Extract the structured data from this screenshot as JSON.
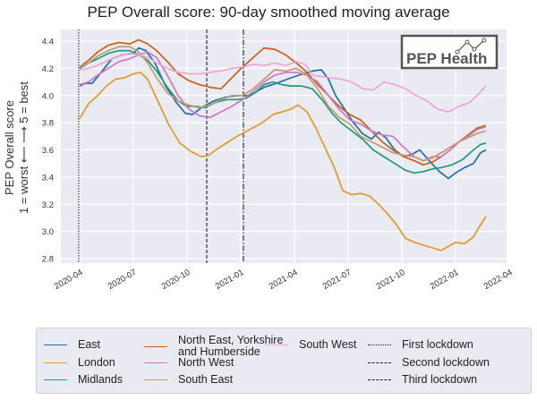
{
  "chart_data": {
    "type": "line",
    "title": "PEP Overall score: 90-day smoothed moving average",
    "xlabel": "",
    "ylabel_lines": [
      "PEP Overall score",
      "1 = worst ⟵  ⟶ 5 = best"
    ],
    "x_units": "months since 2020-04-01",
    "xlim": [
      -0.3,
      24.2
    ],
    "ylim": [
      2.77,
      4.48
    ],
    "grid": true,
    "background": "#eaeaf2",
    "x_ticks": [
      {
        "value": 0,
        "label": "2020-04"
      },
      {
        "value": 3,
        "label": "2020-07"
      },
      {
        "value": 6,
        "label": "2020-10"
      },
      {
        "value": 9,
        "label": "2021-01"
      },
      {
        "value": 12,
        "label": "2021-04"
      },
      {
        "value": 15,
        "label": "2021-07"
      },
      {
        "value": 18,
        "label": "2021-10"
      },
      {
        "value": 21,
        "label": "2022-01"
      },
      {
        "value": 24,
        "label": "2022-04"
      }
    ],
    "y_ticks": [
      2.8,
      3.0,
      3.2,
      3.4,
      3.6,
      3.8,
      4.0,
      4.2,
      4.4
    ],
    "y_tick_labels": [
      "2.8",
      "3.0",
      "3.2",
      "3.4",
      "3.6",
      "3.8",
      "4.0",
      "4.2",
      "4.4"
    ],
    "series": [
      {
        "name": "East",
        "color": "#1f6fb0",
        "x": [
          0,
          0.3,
          0.7,
          1.2,
          1.8,
          2.4,
          3.0,
          3.3,
          3.7,
          4.2,
          4.8,
          5.4,
          5.9,
          6.3,
          6.8,
          7.5,
          8.2,
          8.9,
          9.5,
          10.3,
          11.0,
          11.8,
          12.5,
          13.0,
          13.5,
          13.9,
          14.3,
          14.8,
          15.3,
          15.8,
          16.3,
          16.7,
          17.1,
          17.6,
          18.1,
          18.6,
          19.0,
          19.6,
          20.1,
          20.6,
          21.0,
          21.5,
          22.0,
          22.4,
          22.7
        ],
        "values": [
          4.07,
          4.09,
          4.09,
          4.17,
          4.27,
          4.3,
          4.31,
          4.35,
          4.33,
          4.24,
          4.07,
          3.95,
          3.87,
          3.86,
          3.91,
          3.96,
          3.99,
          4.0,
          4.0,
          4.06,
          4.09,
          4.13,
          4.16,
          4.18,
          4.19,
          4.12,
          4.0,
          3.9,
          3.8,
          3.72,
          3.68,
          3.73,
          3.69,
          3.6,
          3.55,
          3.57,
          3.6,
          3.51,
          3.44,
          3.39,
          3.43,
          3.47,
          3.5,
          3.58,
          3.6
        ]
      },
      {
        "name": "London",
        "color": "#e09a2c",
        "x": [
          0,
          0.5,
          1.0,
          1.5,
          2.0,
          2.5,
          3.0,
          3.4,
          3.8,
          4.4,
          5.0,
          5.6,
          6.2,
          6.8,
          7.2,
          7.6,
          8.2,
          8.8,
          9.5,
          10.2,
          10.8,
          11.3,
          11.8,
          12.2,
          12.7,
          13.2,
          13.7,
          14.2,
          14.7,
          15.2,
          15.7,
          16.2,
          16.7,
          17.2,
          17.7,
          18.2,
          18.7,
          19.2,
          19.7,
          20.2,
          20.6,
          21.0,
          21.5,
          22.0,
          22.4,
          22.7
        ],
        "values": [
          3.83,
          3.94,
          4.0,
          4.07,
          4.12,
          4.13,
          4.16,
          4.17,
          4.12,
          3.95,
          3.78,
          3.65,
          3.59,
          3.55,
          3.56,
          3.6,
          3.65,
          3.7,
          3.75,
          3.8,
          3.86,
          3.88,
          3.9,
          3.93,
          3.88,
          3.76,
          3.62,
          3.48,
          3.3,
          3.27,
          3.28,
          3.26,
          3.2,
          3.13,
          3.05,
          2.95,
          2.92,
          2.9,
          2.88,
          2.86,
          2.89,
          2.92,
          2.91,
          2.96,
          3.05,
          3.11
        ]
      },
      {
        "name": "Midlands",
        "color": "#1b9e77",
        "x": [
          0,
          0.5,
          1.0,
          1.6,
          2.2,
          2.8,
          3.3,
          3.8,
          4.3,
          4.9,
          5.5,
          6.0,
          6.5,
          7.0,
          7.6,
          8.2,
          8.8,
          9.3,
          9.8,
          10.3,
          10.8,
          11.3,
          11.8,
          12.4,
          13.0,
          13.6,
          14.1,
          14.6,
          15.2,
          15.8,
          16.4,
          17.0,
          17.6,
          18.2,
          18.7,
          19.2,
          19.7,
          20.2,
          20.8,
          21.4,
          22.0,
          22.4,
          22.7
        ],
        "values": [
          4.2,
          4.24,
          4.27,
          4.31,
          4.33,
          4.33,
          4.3,
          4.26,
          4.18,
          4.06,
          3.96,
          3.92,
          3.92,
          3.91,
          3.95,
          3.97,
          3.97,
          3.98,
          4.02,
          4.08,
          4.1,
          4.08,
          4.07,
          4.07,
          4.05,
          3.96,
          3.87,
          3.8,
          3.74,
          3.68,
          3.6,
          3.55,
          3.5,
          3.45,
          3.43,
          3.44,
          3.46,
          3.47,
          3.49,
          3.53,
          3.6,
          3.64,
          3.65
        ]
      },
      {
        "name": "North East, Yorkshire and Humberside",
        "color": "#c65f1e",
        "x": [
          0,
          0.5,
          1.0,
          1.6,
          2.2,
          2.8,
          3.3,
          3.8,
          4.3,
          4.9,
          5.5,
          6.1,
          6.7,
          7.3,
          7.9,
          8.5,
          9.1,
          9.7,
          10.3,
          10.9,
          11.5,
          12.1,
          12.7,
          13.3,
          13.9,
          14.5,
          15.1,
          15.7,
          16.3,
          16.9,
          17.5,
          18.1,
          18.7,
          19.2,
          19.7,
          20.2,
          20.7,
          21.2,
          21.7,
          22.2,
          22.7
        ],
        "values": [
          4.21,
          4.26,
          4.32,
          4.37,
          4.39,
          4.38,
          4.41,
          4.38,
          4.33,
          4.25,
          4.16,
          4.11,
          4.08,
          4.06,
          4.05,
          4.13,
          4.21,
          4.28,
          4.35,
          4.34,
          4.3,
          4.24,
          4.17,
          4.08,
          4.0,
          3.92,
          3.86,
          3.82,
          3.74,
          3.66,
          3.6,
          3.55,
          3.52,
          3.49,
          3.51,
          3.55,
          3.6,
          3.66,
          3.71,
          3.76,
          3.78
        ]
      },
      {
        "name": "North West",
        "color": "#cc79c4",
        "x": [
          0,
          0.5,
          1.0,
          1.6,
          2.2,
          2.8,
          3.3,
          3.8,
          4.3,
          4.9,
          5.5,
          6.1,
          6.7,
          7.3,
          7.9,
          8.5,
          9.1,
          9.7,
          10.3,
          10.9,
          11.5,
          12.1,
          12.7,
          13.3,
          13.9,
          14.5,
          15.1,
          15.7,
          16.3,
          16.9,
          17.5,
          18.1,
          18.7,
          19.2,
          19.7,
          20.2,
          20.7,
          21.2,
          21.7,
          22.2,
          22.7
        ],
        "values": [
          4.08,
          4.1,
          4.15,
          4.2,
          4.25,
          4.27,
          4.3,
          4.32,
          4.28,
          4.15,
          4.0,
          3.9,
          3.85,
          3.84,
          3.88,
          3.92,
          3.97,
          4.03,
          4.1,
          4.15,
          4.17,
          4.17,
          4.15,
          4.1,
          4.0,
          3.9,
          3.82,
          3.79,
          3.74,
          3.71,
          3.7,
          3.62,
          3.55,
          3.52,
          3.55,
          3.55,
          3.6,
          3.66,
          3.7,
          3.75,
          3.77
        ]
      },
      {
        "name": "South East",
        "color": "#c49a6c",
        "x": [
          0,
          0.5,
          1.0,
          1.6,
          2.2,
          2.8,
          3.3,
          3.8,
          4.3,
          4.9,
          5.5,
          6.1,
          6.7,
          7.3,
          7.9,
          8.5,
          9.1,
          9.7,
          10.3,
          10.9,
          11.5,
          12.1,
          12.7,
          13.3,
          13.9,
          14.5,
          15.1,
          15.7,
          16.3,
          16.9,
          17.5,
          18.1,
          18.7,
          19.2,
          19.7,
          20.2,
          20.7,
          21.2,
          21.7,
          22.2,
          22.7
        ],
        "values": [
          4.21,
          4.24,
          4.29,
          4.33,
          4.36,
          4.36,
          4.32,
          4.24,
          4.13,
          4.02,
          3.96,
          3.93,
          3.91,
          3.93,
          3.97,
          4.0,
          4.0,
          4.05,
          4.12,
          4.19,
          4.18,
          4.2,
          4.15,
          4.05,
          3.92,
          3.84,
          3.79,
          3.7,
          3.66,
          3.62,
          3.58,
          3.56,
          3.55,
          3.52,
          3.54,
          3.58,
          3.62,
          3.66,
          3.69,
          3.72,
          3.74
        ]
      },
      {
        "name": "South West",
        "color": "#f2a4d4",
        "x": [
          0,
          0.5,
          1.0,
          1.6,
          2.2,
          2.8,
          3.3,
          3.8,
          4.3,
          4.9,
          5.5,
          6.1,
          6.7,
          7.3,
          7.9,
          8.5,
          9.1,
          9.7,
          10.3,
          10.9,
          11.5,
          12.1,
          12.6,
          13.0,
          13.5,
          14.0,
          14.6,
          15.2,
          15.8,
          16.4,
          17.0,
          17.6,
          18.2,
          18.8,
          19.4,
          20.0,
          20.6,
          21.2,
          21.8,
          22.2,
          22.7
        ],
        "values": [
          4.19,
          4.2,
          4.22,
          4.26,
          4.29,
          4.31,
          4.3,
          4.28,
          4.24,
          4.2,
          4.17,
          4.16,
          4.16,
          4.17,
          4.18,
          4.2,
          4.21,
          4.23,
          4.22,
          4.24,
          4.22,
          4.25,
          4.23,
          4.15,
          4.14,
          4.13,
          4.12,
          4.1,
          4.05,
          4.04,
          4.1,
          4.08,
          4.05,
          4.0,
          3.96,
          3.9,
          3.88,
          3.92,
          3.95,
          4.0,
          4.07
        ]
      }
    ],
    "vlines": [
      {
        "name": "First lockdown",
        "x": -0.05,
        "style": "dotted"
      },
      {
        "name": "Second lockdown",
        "x": 7.1,
        "style": "dashed"
      },
      {
        "name": "Third lockdown",
        "x": 9.15,
        "style": "dashdot"
      }
    ],
    "legend_placement": "bottom-outside"
  },
  "logo": {
    "text": "PEP Health"
  },
  "legend": {
    "items": [
      {
        "label": "East",
        "kind": "line"
      },
      {
        "label": "London",
        "kind": "line"
      },
      {
        "label": "Midlands",
        "kind": "line"
      },
      {
        "label": "North East, Yorkshire\nand Humberside",
        "kind": "line"
      },
      {
        "label": "North West",
        "kind": "line"
      },
      {
        "label": "South East",
        "kind": "line"
      },
      {
        "label": "South West",
        "kind": "line"
      },
      {
        "label": "First lockdown",
        "kind": "dotted"
      },
      {
        "label": "Second lockdown",
        "kind": "dashed"
      },
      {
        "label": "Third lockdown",
        "kind": "dashdot"
      }
    ]
  }
}
